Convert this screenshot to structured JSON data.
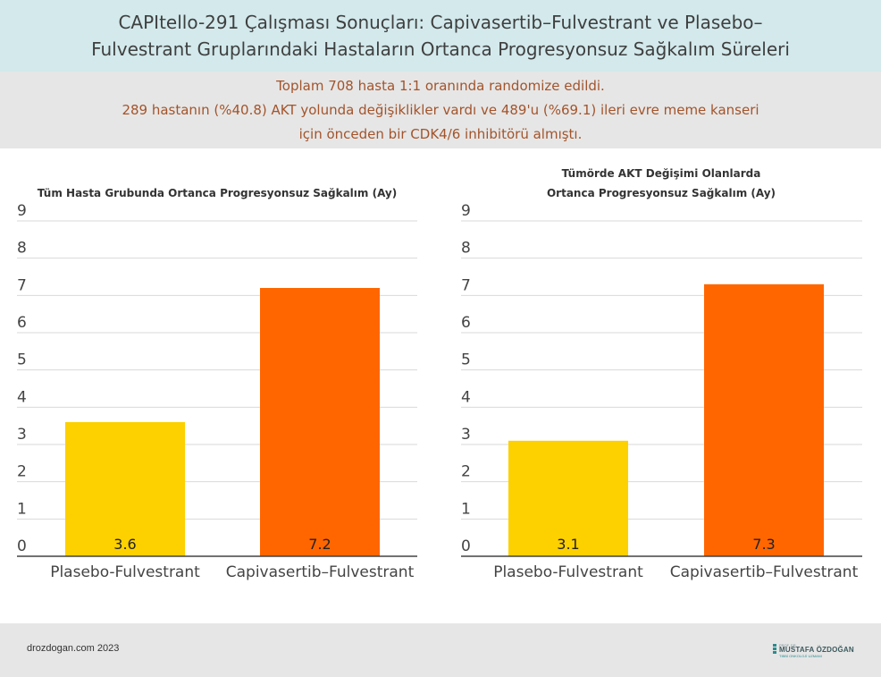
{
  "header": {
    "title_line1": "CAPItello-291 Çalışması Sonuçları: Capivasertib–Fulvestrant ve Plasebo–",
    "title_line2": "Fulvestrant Gruplarındaki Hastaların Ortanca Progresyonsuz Sağkalım Süreleri"
  },
  "subheader": {
    "line1": "Toplam 708 hasta 1:1 oranında randomize edildi.",
    "line2": "289 hastanın (%40.8) AKT yolunda değişiklikler vardı ve 489'u (%69.1) ileri evre meme kanseri",
    "line3": "için önceden bir CDK4/6 inhibitörü almıştı."
  },
  "chart_data": [
    {
      "type": "bar",
      "title": "Tüm Hasta Grubunda Ortanca Progresyonsuz Sağkalım (Ay)",
      "title_lines": [
        "Tüm Hasta Grubunda Ortanca Progresyonsuz Sağkalım (Ay)"
      ],
      "categories": [
        "Plasebo-Fulvestrant",
        "Capivasertib–Fulvestrant"
      ],
      "values": [
        3.6,
        7.2
      ],
      "value_labels": [
        "3.6",
        "7.2"
      ],
      "colors": [
        "#fdd000",
        "#ff6600"
      ],
      "ylim": [
        0,
        9
      ],
      "yticks": [
        0,
        1,
        2,
        3,
        4,
        5,
        6,
        7,
        8,
        9
      ],
      "grid": true,
      "legend": "none"
    },
    {
      "type": "bar",
      "title": "Tümörde AKT Değişimi Olanlarda Ortanca Progresyonsuz Sağkalım (Ay)",
      "title_lines": [
        "Tümörde AKT Değişimi Olanlarda",
        "Ortanca Progresyonsuz Sağkalım (Ay)"
      ],
      "categories": [
        "Plasebo-Fulvestrant",
        "Capivasertib–Fulvestrant"
      ],
      "values": [
        3.1,
        7.3
      ],
      "value_labels": [
        "3.1",
        "7.3"
      ],
      "colors": [
        "#fdd000",
        "#ff6600"
      ],
      "ylim": [
        0,
        9
      ],
      "yticks": [
        0,
        1,
        2,
        3,
        4,
        5,
        6,
        7,
        8,
        9
      ],
      "grid": true,
      "legend": "none"
    }
  ],
  "footer": {
    "credit": "drozdogan.com 2023",
    "logo_prefix": "PROF. DR.",
    "logo_name": "MUSTAFA ÖZDOĞAN",
    "logo_sub": "TIBBİ ONKOLOJİ UZMANI"
  }
}
